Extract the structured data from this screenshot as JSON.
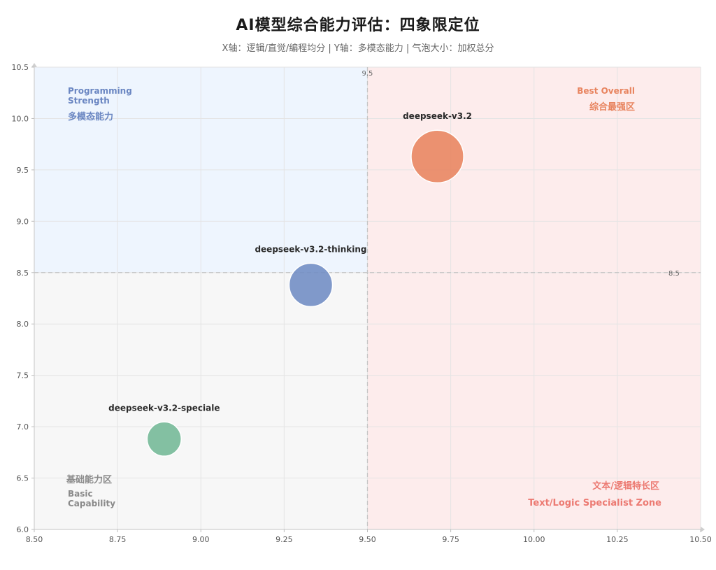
{
  "chart_data": {
    "type": "scatter",
    "title": "AI模型综合能力评估：四象限定位",
    "subtitle": "X轴：逻辑/直觉/编程均分 | Y轴：多模态能力 | 气泡大小：加权总分",
    "xlim": [
      8.5,
      10.5
    ],
    "ylim": [
      6.0,
      10.5
    ],
    "xticks": [
      "8.50",
      "8.75",
      "9.00",
      "9.25",
      "9.50",
      "9.75",
      "10.00",
      "10.25",
      "10.50"
    ],
    "yticks": [
      "6.0",
      "6.5",
      "7.0",
      "7.5",
      "8.0",
      "8.5",
      "9.0",
      "9.5",
      "10.0",
      "10.5"
    ],
    "grid": true,
    "reference_lines": {
      "x": 9.5,
      "x_label": "9.5",
      "y": 8.5,
      "y_label": "8.5"
    },
    "points": [
      {
        "label": "deepseek-v3.2",
        "x": 9.71,
        "y": 9.63,
        "size": 8.0,
        "color": "#e8845f"
      },
      {
        "label": "deepseek-v3.2-thinking",
        "x": 9.33,
        "y": 8.38,
        "size": 6.6,
        "color": "#6f8cc4"
      },
      {
        "label": "deepseek-v3.2-speciale",
        "x": 8.89,
        "y": 6.88,
        "size": 5.2,
        "color": "#73b896"
      }
    ],
    "quadrants": [
      {
        "key": "top_left",
        "en": "Programming Strength",
        "cn": "多模态能力",
        "color": "#6a86c2",
        "bg": "#eef5fe"
      },
      {
        "key": "top_right",
        "en": "Best Overall",
        "cn": "综合最强区",
        "color": "#e8845f",
        "bg": "#fdecec"
      },
      {
        "key": "bottom_left",
        "en": "Basic Capability",
        "cn": "基础能力区",
        "color": "#8a8a8a",
        "bg": "#f7f7f7"
      },
      {
        "key": "bottom_right",
        "en": "Text/Logic Specialist Zone",
        "cn": "文本/逻辑特长区",
        "color": "#ec7a72",
        "bg": "#fdecec"
      }
    ]
  }
}
